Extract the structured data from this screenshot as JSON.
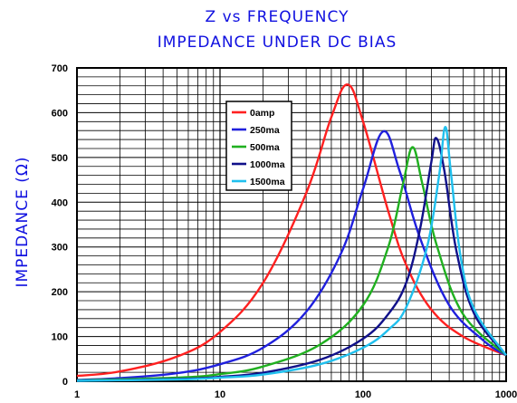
{
  "chart_data": {
    "type": "line",
    "title": "Z vs FREQUENCY",
    "subtitle": "IMPEDANCE UNDER DC BIAS",
    "xlabel": "",
    "ylabel": "IMPEDANCE (Ω)",
    "xscale": "log",
    "xlim": [
      1,
      1000
    ],
    "ylim": [
      0,
      700
    ],
    "xticks": [
      "1",
      "10",
      "100",
      "1000"
    ],
    "yticks": [
      "0",
      "100",
      "200",
      "300",
      "400",
      "500",
      "600",
      "700"
    ],
    "grid": true,
    "legend_position": "upper-left-center",
    "series": [
      {
        "name": "0amp",
        "color": "#ff2020",
        "peak_x": 78,
        "peak_y": 663,
        "x": [
          1,
          2,
          5,
          10,
          20,
          40,
          60,
          78,
          100,
          150,
          200,
          300,
          500,
          1000
        ],
        "y": [
          12,
          22,
          55,
          110,
          220,
          420,
          590,
          663,
          580,
          380,
          260,
          160,
          100,
          58
        ]
      },
      {
        "name": "250ma",
        "color": "#2020dd",
        "peak_x": 138,
        "peak_y": 558,
        "x": [
          1,
          2,
          5,
          10,
          20,
          40,
          70,
          100,
          138,
          180,
          250,
          400,
          700,
          1000
        ],
        "y": [
          3,
          7,
          18,
          38,
          75,
          155,
          285,
          430,
          558,
          470,
          320,
          170,
          90,
          58
        ]
      },
      {
        "name": "500ma",
        "color": "#20b020",
        "peak_x": 222,
        "peak_y": 523,
        "x": [
          1,
          5,
          10,
          20,
          50,
          100,
          150,
          190,
          222,
          260,
          330,
          500,
          1000
        ],
        "y": [
          2,
          8,
          16,
          33,
          82,
          170,
          300,
          440,
          523,
          440,
          300,
          150,
          58
        ]
      },
      {
        "name": "1000ma",
        "color": "#10108a",
        "peak_x": 325,
        "peak_y": 543,
        "x": [
          1,
          5,
          10,
          20,
          50,
          100,
          150,
          200,
          250,
          300,
          325,
          370,
          450,
          600,
          1000
        ],
        "y": [
          1,
          5,
          10,
          19,
          48,
          95,
          150,
          220,
          340,
          490,
          543,
          470,
          290,
          150,
          58
        ]
      },
      {
        "name": "1500ma",
        "color": "#20c0ee",
        "peak_x": 375,
        "peak_y": 568,
        "x": [
          1,
          5,
          10,
          20,
          50,
          100,
          150,
          200,
          280,
          340,
          375,
          410,
          480,
          600,
          1000
        ],
        "y": [
          1,
          4,
          8,
          15,
          38,
          75,
          115,
          165,
          300,
          460,
          568,
          470,
          280,
          160,
          58
        ]
      }
    ]
  }
}
